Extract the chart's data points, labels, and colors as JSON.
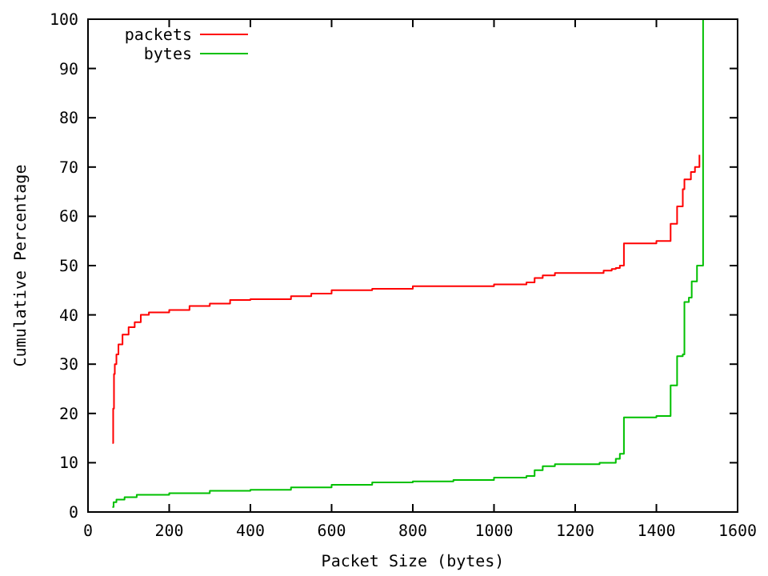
{
  "chart_data": {
    "type": "step",
    "xlabel": "Packet Size (bytes)",
    "ylabel": "Cumulative Percentage",
    "xlim": [
      0,
      1600
    ],
    "ylim": [
      0,
      100
    ],
    "xticks": [
      0,
      200,
      400,
      600,
      800,
      1000,
      1200,
      1400,
      1600
    ],
    "yticks": [
      0,
      10,
      20,
      30,
      40,
      50,
      60,
      70,
      80,
      90,
      100
    ],
    "grid": false,
    "legend": "top left",
    "line_style": "solid",
    "series": [
      {
        "name": "packets",
        "color": "#ff0000",
        "x": [
          60,
          62,
          64,
          66,
          70,
          75,
          85,
          100,
          115,
          130,
          150,
          200,
          250,
          300,
          350,
          400,
          500,
          550,
          600,
          700,
          800,
          1000,
          1080,
          1100,
          1120,
          1150,
          1270,
          1290,
          1300,
          1310,
          1320,
          1400,
          1435,
          1451,
          1465,
          1469,
          1485,
          1495,
          1506
        ],
        "values": [
          14,
          21,
          28,
          30,
          32,
          34,
          36,
          37.5,
          38.5,
          40,
          40.5,
          41,
          41.8,
          42.3,
          43,
          43.2,
          43.8,
          44.3,
          45,
          45.3,
          45.8,
          46.2,
          46.6,
          47.5,
          48,
          48.5,
          49,
          49.3,
          49.5,
          50,
          54.5,
          55,
          58.5,
          62,
          65.5,
          67.5,
          69,
          70,
          72.5
        ]
      },
      {
        "name": "bytes",
        "color": "#00c000",
        "x": [
          60,
          63,
          70,
          90,
          120,
          200,
          300,
          400,
          500,
          600,
          700,
          800,
          900,
          1000,
          1080,
          1100,
          1120,
          1150,
          1260,
          1300,
          1310,
          1320,
          1400,
          1435,
          1451,
          1465,
          1469,
          1480,
          1487,
          1500,
          1515
        ],
        "values": [
          1,
          2,
          2.5,
          3,
          3.5,
          3.8,
          4.3,
          4.5,
          5,
          5.5,
          6,
          6.2,
          6.5,
          7,
          7.3,
          8.5,
          9.3,
          9.7,
          10,
          10.8,
          11.8,
          19.2,
          19.5,
          25.7,
          31.6,
          32,
          42.6,
          43.5,
          46.8,
          50,
          100
        ]
      }
    ]
  }
}
